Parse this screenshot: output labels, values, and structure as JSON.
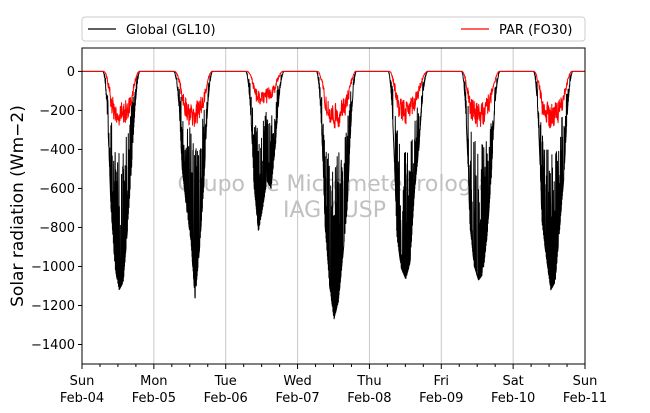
{
  "chart_data": {
    "type": "line",
    "ylabel": "Solar radiation ($Wm−2$)",
    "ylabel_display": "Solar radiation (Wm−2)",
    "ylim": [
      -1500,
      120
    ],
    "yticks": [
      0,
      -200,
      -400,
      -600,
      -800,
      -1000,
      -1200,
      -1400
    ],
    "xlim": [
      "2018-02-04",
      "2018-02-11"
    ],
    "xticks": [
      {
        "day": "Sun",
        "date": "Feb-04"
      },
      {
        "day": "Mon",
        "date": "Feb-05"
      },
      {
        "day": "Tue",
        "date": "Feb-06"
      },
      {
        "day": "Wed",
        "date": "Feb-07"
      },
      {
        "day": "Thu",
        "date": "Feb-08"
      },
      {
        "day": "Fri",
        "date": "Feb-09"
      },
      {
        "day": "Sat",
        "date": "Feb-10"
      },
      {
        "day": "Sun",
        "date": "Feb-11"
      }
    ],
    "grid": "vertical",
    "legend_position": "top",
    "watermark": [
      "Grupo de Micrometeorologia",
      "IAG / USP"
    ],
    "colors": {
      "global": "#000000",
      "par": "#ff0000",
      "grid": "#c8c8c8",
      "watermark": "#c0c0c0"
    },
    "series": [
      {
        "name": "Global (GL10)",
        "color": "#000000",
        "days": [
          {
            "date": "Feb-04",
            "sunrise": 7.0,
            "sunset": 19.2,
            "peak": -1120,
            "daily_max": [
              -30,
              -350,
              -700,
              -1010,
              -1120,
              -1080,
              -820,
              -500,
              -300,
              -120
            ]
          },
          {
            "date": "Feb-05",
            "sunrise": 6.6,
            "sunset": 19.5,
            "peak": -1165,
            "daily_max": [
              -20,
              -200,
              -500,
              -700,
              -860,
              -1165,
              -920,
              -600,
              -300,
              -100
            ]
          },
          {
            "date": "Feb-06",
            "sunrise": 6.7,
            "sunset": 19.4,
            "peak": -820,
            "daily_max": [
              -30,
              -300,
              -600,
              -820,
              -700,
              -560,
              -600,
              -380,
              -200,
              -60
            ]
          },
          {
            "date": "Feb-07",
            "sunrise": 6.3,
            "sunset": 19.5,
            "peak": -1270,
            "daily_max": [
              -30,
              -400,
              -800,
              -1100,
              -1270,
              -1180,
              -950,
              -700,
              -400,
              -150
            ]
          },
          {
            "date": "Feb-08",
            "sunrise": 6.3,
            "sunset": 19.4,
            "peak": -1065,
            "daily_max": [
              -40,
              -450,
              -850,
              -1010,
              -1065,
              -980,
              -620,
              -400,
              -200,
              -50
            ]
          },
          {
            "date": "Feb-09",
            "sunrise": 6.8,
            "sunset": 19.5,
            "peak": -1070,
            "daily_max": [
              -30,
              -400,
              -800,
              -1000,
              -1070,
              -1040,
              -850,
              -550,
              -260,
              -80
            ]
          },
          {
            "date": "Feb-10",
            "sunrise": 6.8,
            "sunset": 19.8,
            "peak": -1120,
            "daily_max": [
              -30,
              -380,
              -780,
              -960,
              -1120,
              -1080,
              -820,
              -550,
              -300,
              -90
            ]
          }
        ]
      },
      {
        "name": "PAR (FO30)",
        "color": "#ff0000",
        "days": [
          {
            "date": "Feb-04",
            "sunrise": 7.3,
            "sunset": 19.0,
            "peak": -290,
            "daily_max": [
              -20,
              -120,
              -220,
              -270,
              -290,
              -280,
              -250,
              -200,
              -130,
              -50
            ]
          },
          {
            "date": "Feb-05",
            "sunrise": 7.0,
            "sunset": 19.3,
            "peak": -300,
            "daily_max": [
              -20,
              -100,
              -200,
              -260,
              -300,
              -290,
              -250,
              -200,
              -140,
              -40
            ]
          },
          {
            "date": "Feb-06",
            "sunrise": 7.3,
            "sunset": 19.0,
            "peak": -190,
            "daily_max": [
              -20,
              -90,
              -150,
              -170,
              -190,
              -160,
              -140,
              -110,
              -70,
              -20
            ]
          },
          {
            "date": "Feb-07",
            "sunrise": 6.8,
            "sunset": 19.3,
            "peak": -300,
            "daily_max": [
              -20,
              -140,
              -240,
              -290,
              -300,
              -290,
              -260,
              -200,
              -130,
              -40
            ]
          },
          {
            "date": "Feb-08",
            "sunrise": 6.8,
            "sunset": 19.2,
            "peak": -270,
            "daily_max": [
              -30,
              -150,
              -230,
              -260,
              -270,
              -240,
              -200,
              -140,
              -80,
              -30
            ]
          },
          {
            "date": "Feb-09",
            "sunrise": 7.0,
            "sunset": 19.3,
            "peak": -290,
            "daily_max": [
              -30,
              -150,
              -240,
              -280,
              -290,
              -280,
              -240,
              -180,
              -110,
              -30
            ]
          },
          {
            "date": "Feb-10",
            "sunrise": 7.0,
            "sunset": 19.5,
            "peak": -300,
            "daily_max": [
              -30,
              -140,
              -230,
              -280,
              -300,
              -290,
              -260,
              -200,
              -130,
              -40
            ]
          }
        ]
      }
    ]
  }
}
